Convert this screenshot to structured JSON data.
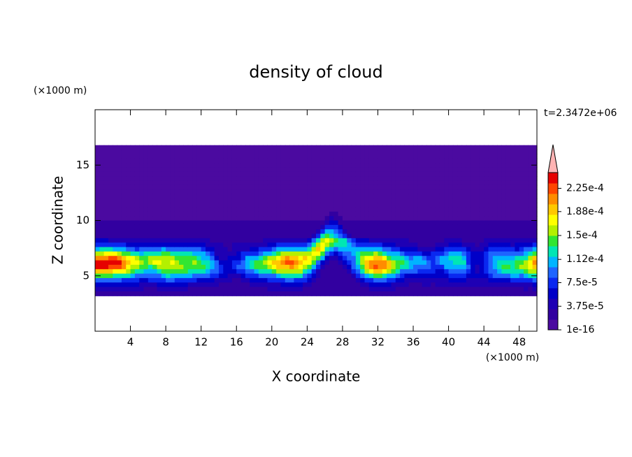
{
  "chart_data": {
    "type": "contour",
    "title": "density of cloud",
    "x_label": "X coordinate",
    "y_label": "Z coordinate",
    "x_unit": "(×1000 m)",
    "y_unit": "(×1000 m)",
    "annotation": "t=2.3472e+06",
    "xlim": [
      0,
      50
    ],
    "ylim": [
      0,
      20
    ],
    "xticks": [
      4,
      8,
      12,
      16,
      20,
      24,
      28,
      32,
      36,
      40,
      44,
      48
    ],
    "yticks": [
      5,
      10,
      15
    ],
    "colorbar": {
      "clim": [
        1e-16,
        0.00025
      ],
      "ticks": [
        {
          "value": 1e-16,
          "label": "1e-16"
        },
        {
          "value": 3.75e-05,
          "label": "3.75e-5"
        },
        {
          "value": 7.5e-05,
          "label": "7.5e-5"
        },
        {
          "value": 0.000112,
          "label": "1.12e-4"
        },
        {
          "value": 0.00015,
          "label": "1.5e-4"
        },
        {
          "value": 0.000188,
          "label": "1.88e-4"
        },
        {
          "value": 0.000225,
          "label": "2.25e-4"
        }
      ],
      "colors": [
        "#4b0aa0",
        "#3200a0",
        "#1e00b4",
        "#0000c8",
        "#0a28f0",
        "#1e64ff",
        "#00b4ff",
        "#00e6b4",
        "#32e632",
        "#b4f000",
        "#ffff00",
        "#ffc800",
        "#ff8c00",
        "#ff4600",
        "#e60000"
      ],
      "extend_color": "#ffb4b4"
    }
  }
}
